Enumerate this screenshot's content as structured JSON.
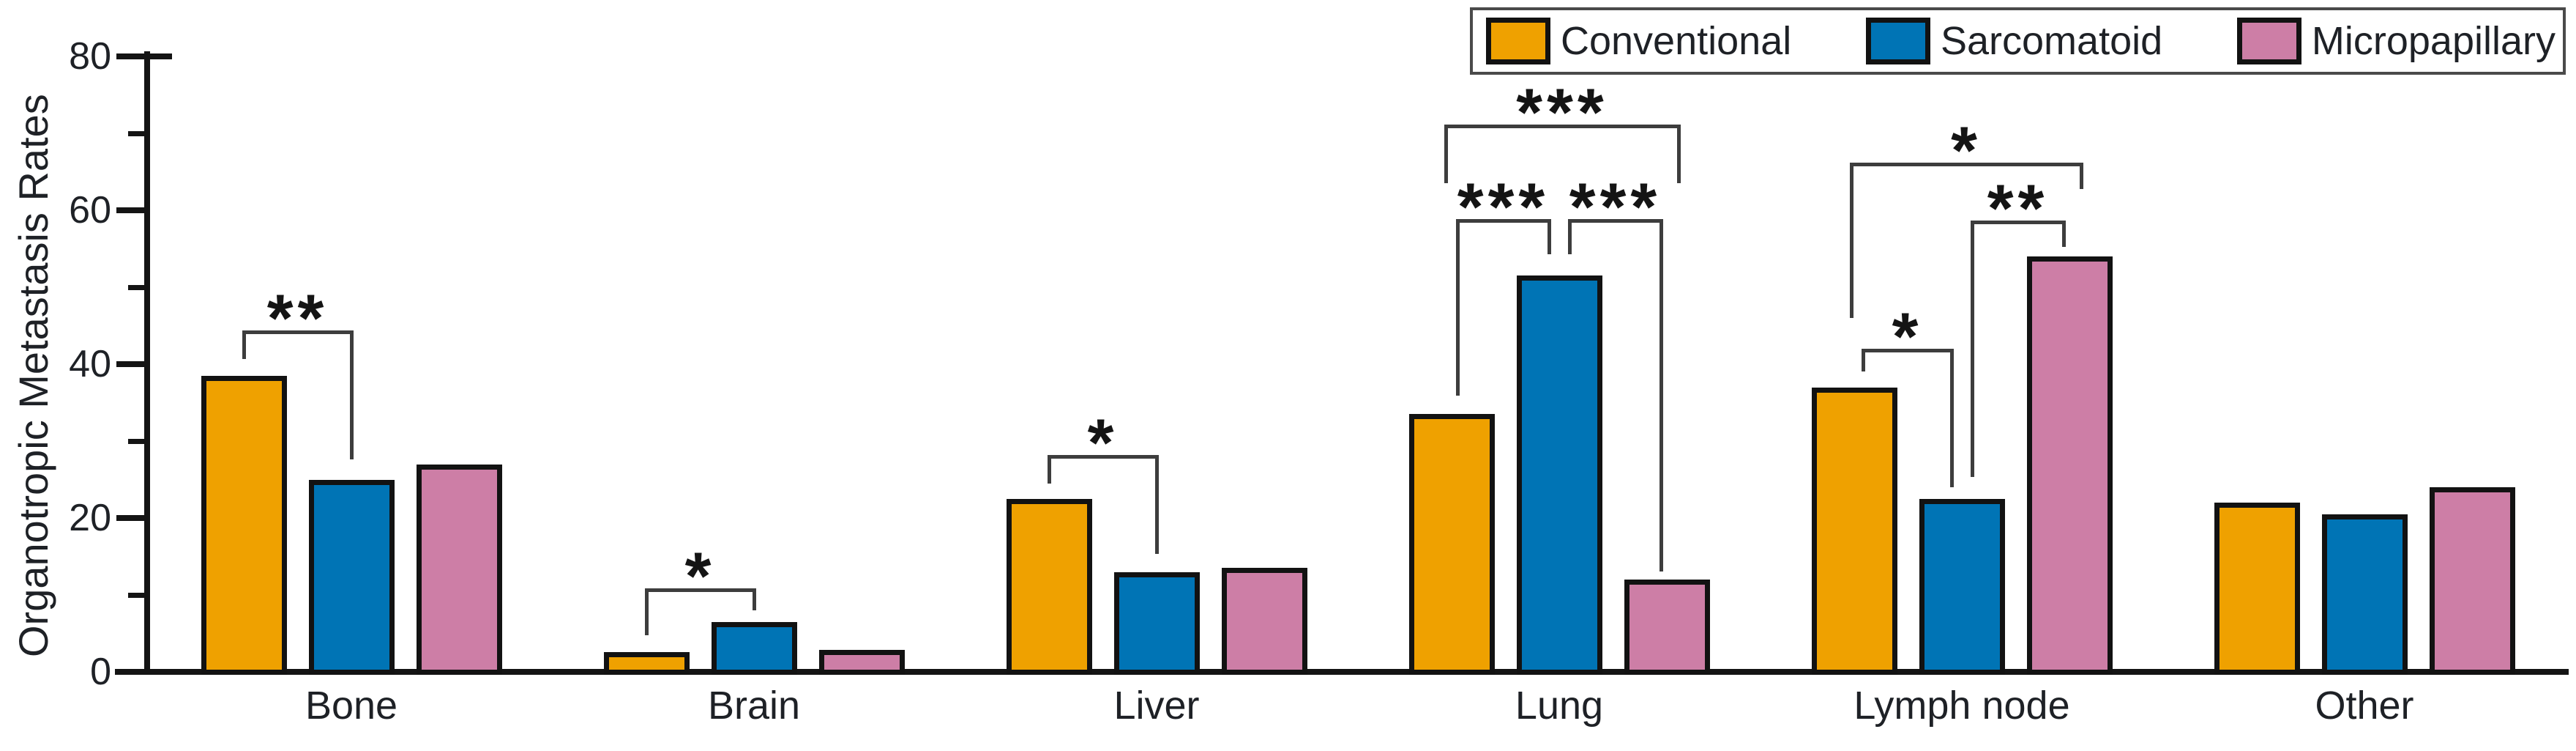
{
  "figure": {
    "ylabel": "Organotropic Metastasis Rates"
  },
  "chart_data": {
    "type": "bar",
    "title": "",
    "xlabel": "",
    "ylabel": "Organotropic Metastasis Rates",
    "categories": [
      "Bone",
      "Brain",
      "Liver",
      "Lung",
      "Lymph node",
      "Other"
    ],
    "series": [
      {
        "name": "Conventional",
        "color": "#EFA100",
        "values": [
          38.5,
          2.6,
          22.5,
          33.5,
          37.0,
          22.0
        ]
      },
      {
        "name": "Sarcomatoid",
        "color": "#0074B5",
        "values": [
          25.0,
          6.5,
          13.0,
          51.5,
          22.5,
          20.5
        ]
      },
      {
        "name": "Micropapillary",
        "color": "#CD7EA6",
        "values": [
          27.0,
          2.9,
          13.5,
          12.0,
          54.0,
          24.0
        ]
      }
    ],
    "ylim": [
      0,
      80
    ],
    "yticks": [
      0,
      20,
      40,
      60,
      80
    ],
    "minor_yticks": [
      10,
      30,
      50,
      70
    ],
    "grid": false,
    "legend_position": "top-right",
    "significance": [
      {
        "category": "Bone",
        "label": "**",
        "between": [
          "Conventional",
          "Sarcomatoid"
        ],
        "top": 44.2,
        "tips": [
          40.7,
          27.6
        ],
        "dx": [
          0,
          0
        ]
      },
      {
        "category": "Brain",
        "label": "*",
        "between": [
          "Conventional",
          "Sarcomatoid"
        ],
        "top": 10.7,
        "tips": [
          4.8,
          8.0
        ],
        "dx": [
          0,
          0
        ]
      },
      {
        "category": "Liver",
        "label": "*",
        "between": [
          "Conventional",
          "Sarcomatoid"
        ],
        "top": 28.0,
        "tips": [
          24.5,
          15.3
        ],
        "dx": [
          0,
          0
        ]
      },
      {
        "category": "Lung",
        "label": "***",
        "between": [
          "Conventional",
          "Sarcomatoid"
        ],
        "top": 58.7,
        "tips": [
          35.9,
          54.3
        ],
        "dx": [
          8,
          -14
        ]
      },
      {
        "category": "Lung",
        "label": "***",
        "between": [
          "Sarcomatoid",
          "Micropapillary"
        ],
        "top": 58.7,
        "tips": [
          54.3,
          13.0
        ],
        "dx": [
          14,
          -8
        ]
      },
      {
        "category": "Lung",
        "label": "***",
        "between": [
          "Conventional",
          "Micropapillary"
        ],
        "top": 71.0,
        "tips": [
          63.5,
          63.5
        ],
        "dx": [
          -8,
          16
        ]
      },
      {
        "category": "Lymph node",
        "label": "*",
        "between": [
          "Conventional",
          "Sarcomatoid"
        ],
        "top": 41.8,
        "tips": [
          39.0,
          24.0
        ],
        "dx": [
          12,
          -14
        ]
      },
      {
        "category": "Lymph node",
        "label": "**",
        "between": [
          "Sarcomatoid",
          "Micropapillary"
        ],
        "top": 58.5,
        "tips": [
          25.3,
          55.2
        ],
        "dx": [
          14,
          -8
        ]
      },
      {
        "category": "Lymph node",
        "label": "*",
        "between": [
          "Conventional",
          "Micropapillary"
        ],
        "top": 66.0,
        "tips": [
          46.0,
          62.8
        ],
        "dx": [
          -4,
          16
        ]
      }
    ]
  }
}
